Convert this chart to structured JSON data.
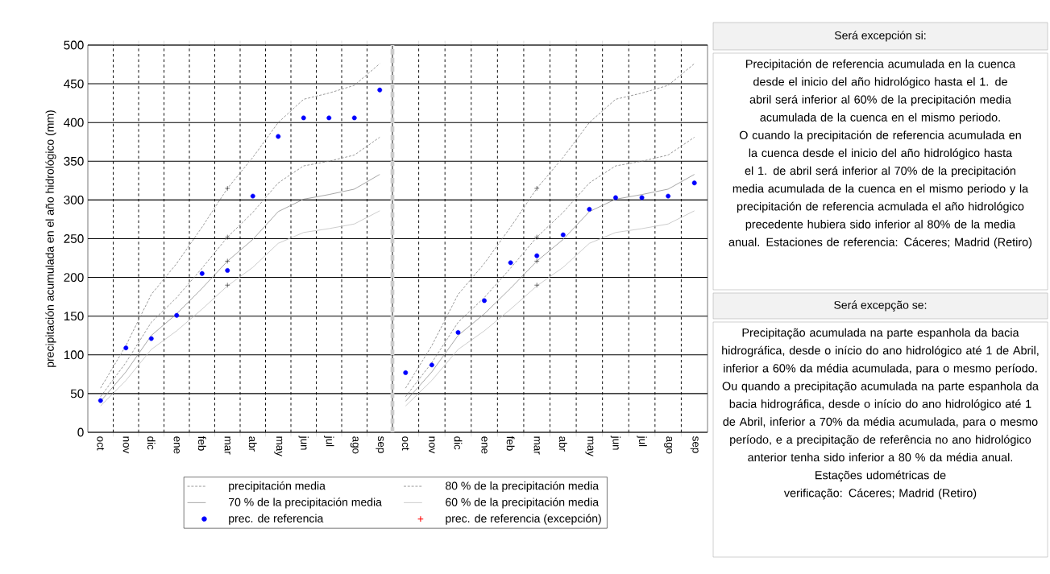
{
  "chart_data": [
    {
      "type": "line",
      "ylabel": "precipitación acumulada en el año hidrológico (mm)",
      "categories": [
        "oct",
        "nov",
        "dic",
        "ene",
        "feb",
        "mar",
        "abr",
        "may",
        "jun",
        "jul",
        "ago",
        "sep"
      ],
      "ylim": [
        0,
        500
      ],
      "yticks": [
        0,
        50,
        100,
        150,
        200,
        250,
        300,
        350,
        400,
        450,
        500
      ],
      "grid": true,
      "legend": "bottom",
      "series": [
        {
          "name": "precipitación media",
          "type": "line",
          "line_style": "dashed",
          "color": "#808080",
          "values": [
            57,
            112,
            178,
            218,
            265,
            315,
            355,
            400,
            430,
            438,
            448,
            476
          ]
        },
        {
          "name": "80 % de la precipitación media",
          "type": "line",
          "line_style": "dashed",
          "color": "#808080",
          "values": [
            46,
            90,
            142,
            174,
            212,
            252,
            284,
            322,
            344,
            350,
            358,
            381
          ]
        },
        {
          "name": "70 % de la precipitación media",
          "type": "line",
          "line_style": "solid",
          "color": "#909090",
          "values": [
            40,
            78,
            125,
            153,
            186,
            221,
            249,
            285,
            301,
            307,
            314,
            333
          ]
        },
        {
          "name": "60 % de la precipitación media",
          "type": "line",
          "line_style": "solid",
          "color": "#c0c0c0",
          "values": [
            34,
            67,
            107,
            131,
            159,
            189,
            213,
            244,
            258,
            263,
            269,
            286
          ]
        },
        {
          "name": "prec. de referencia",
          "type": "scatter",
          "marker": "circle",
          "color": "#0000ff",
          "values": [
            41,
            109,
            121,
            151,
            205,
            209,
            305,
            382,
            406,
            406,
            406,
            442
          ]
        },
        {
          "name": "prec. de referencia (excepción)",
          "type": "scatter",
          "marker": "cross",
          "color": "#ff0000",
          "values": [
            null,
            null,
            null,
            null,
            null,
            null,
            null,
            null,
            null,
            null,
            null,
            null
          ]
        },
        {
          "type": "scatter",
          "marker": "cross",
          "color": "#000000",
          "values": [
            null,
            null,
            null,
            null,
            null,
            315,
            null,
            null,
            null,
            null,
            null,
            null
          ]
        },
        {
          "type": "scatter",
          "marker": "cross",
          "color": "#000000",
          "values": [
            null,
            null,
            null,
            null,
            null,
            252,
            null,
            null,
            null,
            null,
            null,
            null
          ]
        },
        {
          "type": "scatter",
          "marker": "cross",
          "color": "#000000",
          "values": [
            null,
            null,
            null,
            null,
            null,
            221,
            null,
            null,
            null,
            null,
            null,
            null
          ]
        },
        {
          "type": "scatter",
          "marker": "cross",
          "color": "#000000",
          "values": [
            null,
            null,
            null,
            null,
            null,
            190,
            null,
            null,
            null,
            null,
            null,
            null
          ]
        }
      ]
    },
    {
      "type": "line",
      "categories": [
        "oct",
        "nov",
        "dic",
        "ene",
        "feb",
        "mar",
        "abr",
        "may",
        "jun",
        "jul",
        "ago",
        "sep"
      ],
      "ylim": [
        0,
        500
      ],
      "yticks": [
        0,
        50,
        100,
        150,
        200,
        250,
        300,
        350,
        400,
        450,
        500
      ],
      "grid": true,
      "tick_labels": "x",
      "series": [
        {
          "type": "line",
          "line_style": "dashed",
          "color": "#808080",
          "values": [
            57,
            112,
            178,
            218,
            265,
            315,
            355,
            400,
            430,
            438,
            448,
            476
          ]
        },
        {
          "type": "line",
          "line_style": "dashed",
          "color": "#808080",
          "values": [
            46,
            90,
            142,
            174,
            212,
            252,
            284,
            322,
            344,
            350,
            358,
            381
          ]
        },
        {
          "type": "line",
          "line_style": "solid",
          "color": "#909090",
          "values": [
            40,
            78,
            125,
            153,
            186,
            221,
            249,
            285,
            301,
            307,
            314,
            333
          ]
        },
        {
          "type": "line",
          "line_style": "solid",
          "color": "#c0c0c0",
          "values": [
            34,
            67,
            107,
            131,
            159,
            189,
            213,
            244,
            258,
            263,
            269,
            286
          ]
        },
        {
          "type": "scatter",
          "marker": "circle",
          "color": "#0000ff",
          "values": [
            77,
            87,
            129,
            170,
            219,
            228,
            255,
            288,
            303,
            303,
            305,
            322
          ]
        },
        {
          "type": "scatter",
          "marker": "cross",
          "color": "#000000",
          "values": [
            null,
            null,
            null,
            null,
            null,
            315,
            null,
            null,
            null,
            null,
            null,
            null
          ]
        },
        {
          "type": "scatter",
          "marker": "cross",
          "color": "#000000",
          "values": [
            null,
            null,
            null,
            null,
            null,
            252,
            null,
            null,
            null,
            null,
            null,
            null
          ]
        },
        {
          "type": "scatter",
          "marker": "cross",
          "color": "#000000",
          "values": [
            null,
            null,
            null,
            null,
            null,
            221,
            null,
            null,
            null,
            null,
            null,
            null
          ]
        },
        {
          "type": "scatter",
          "marker": "cross",
          "color": "#000000",
          "values": [
            null,
            null,
            null,
            null,
            null,
            190,
            null,
            null,
            null,
            null,
            null,
            null
          ]
        }
      ]
    },
    {
      "type": "other",
      "title": "Será excepción si:",
      "annotations": [
        "Precipitación de referencia acumulada en la cuenca desde el inicio del año hidrológico hasta el 1. de abril será inferior al 60% de la precipitación media acumulada de la cuenca en el mismo periodo.",
        "O cuando la precipitación de referencia acumulada en la cuenca desde el inicio del año hidrológico hasta el 1. de abril será inferior al 70% de la precipitación media acumulada de la cuenca en el mismo periodo y la precipitación de referencia acmulada el año hidrológico precedente hubiera sido inferior al 80% de la media anual. Estaciones de referencia: Cáceres; Madrid (Retiro)"
      ]
    },
    {
      "type": "other",
      "title": "Será excepção se:",
      "annotations": [
        "Precipitação acumulada na parte espanhola da bacia hidrográfica, desde o início do ano hidrológico até 1 de Abril, inferior a 60% da média acumulada, para o mesmo período. Ou quando a precipitação acumulada na parte espanhola da bacia hidrográfica, desde o início do ano hidrológico até 1 de Abril, inferior a 70% da média acumulada, para o mesmo período, e a precipitação de referência no ano hidrológico anterior tenha sido inferior a 80 % da média anual.",
        "Estações udométricas de verificação: Cáceres; Madrid (Retiro)"
      ]
    }
  ]
}
